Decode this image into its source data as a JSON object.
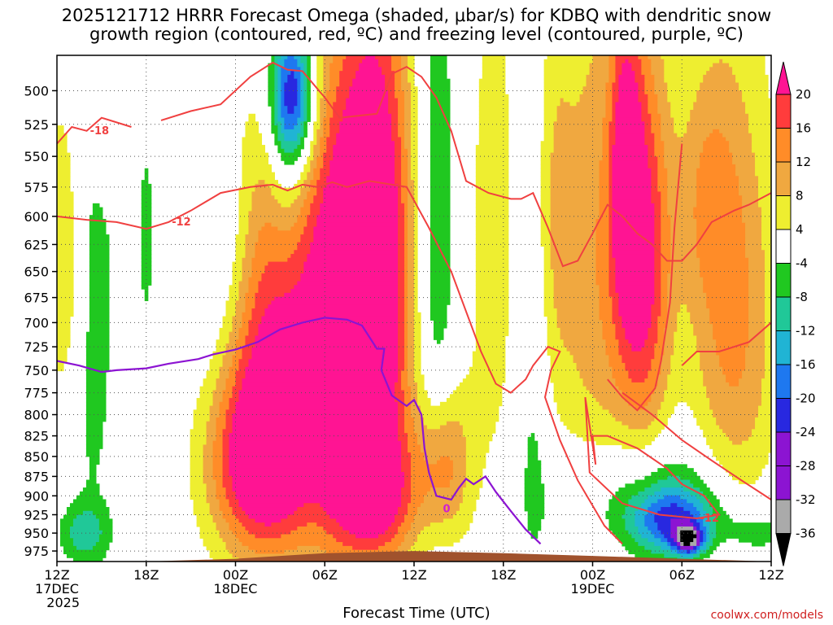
{
  "title": "2025121712 HRRR Forecast Omega (shaded, μbar/s) for KDBQ with dendritic snow\ngrowth region (contoured, red, ºC) and freezing level (contoured, purple, ºC)",
  "xlabel": "Forecast Time (UTC)",
  "credit": "coolwx.com/models",
  "chart_data": {
    "type": "heatmap",
    "title": "2025121712 HRRR Forecast Omega (shaded, μbar/s) for KDBQ with dendritic snow growth region (contoured, red, ºC) and freezing level (contoured, purple, ºC)",
    "xlabel": "Forecast Time (UTC)",
    "ylabel": "",
    "x_ticks": [
      {
        "hour": 0,
        "lines": [
          "12Z",
          "17DEC",
          "2025"
        ]
      },
      {
        "hour": 6,
        "lines": [
          "18Z"
        ]
      },
      {
        "hour": 12,
        "lines": [
          "00Z",
          "18DEC"
        ]
      },
      {
        "hour": 18,
        "lines": [
          "06Z"
        ]
      },
      {
        "hour": 24,
        "lines": [
          "12Z"
        ]
      },
      {
        "hour": 30,
        "lines": [
          "18Z"
        ]
      },
      {
        "hour": 36,
        "lines": [
          "00Z",
          "19DEC"
        ]
      },
      {
        "hour": 42,
        "lines": [
          "06Z"
        ]
      },
      {
        "hour": 48,
        "lines": [
          "12Z"
        ]
      }
    ],
    "xlim_hours": [
      0,
      48
    ],
    "y_ticks": [
      500,
      525,
      550,
      575,
      600,
      625,
      650,
      675,
      700,
      725,
      750,
      775,
      800,
      825,
      850,
      875,
      900,
      925,
      950,
      975
    ],
    "ylim_hpa": [
      475,
      990
    ],
    "y_scale": "log-pressure",
    "grid": true,
    "colorbar": {
      "labels": [
        "20",
        "16",
        "12",
        "8",
        "4",
        "-4",
        "-8",
        "-12",
        "-16",
        "-20",
        "-24",
        "-28",
        "-32",
        "-36"
      ],
      "colors": [
        "#ff1493",
        "#ff3c3c",
        "#ff8c28",
        "#f0a840",
        "#e8c850",
        "#eeee30",
        "#ffffff",
        "#20c820",
        "#20c898",
        "#20b4d4",
        "#1e78f0",
        "#2828e0",
        "#8c14d2",
        "#aaaaaa",
        "#000000"
      ]
    },
    "omega_blobs": [
      {
        "t": 15.6,
        "p": 730,
        "dt": 5.0,
        "dp": 230,
        "v": 24
      },
      {
        "t": 13.5,
        "p": 860,
        "dt": 3.2,
        "dp": 110,
        "v": 18
      },
      {
        "t": 21.5,
        "p": 640,
        "dt": 2.4,
        "dp": 260,
        "v": 26
      },
      {
        "t": 19.0,
        "p": 700,
        "dt": 1.8,
        "dp": 250,
        "v": 10
      },
      {
        "t": 21.5,
        "p": 900,
        "dt": 3.0,
        "dp": 90,
        "v": 16
      },
      {
        "t": 0.8,
        "p": 640,
        "dt": 1.6,
        "dp": 170,
        "v": 10
      },
      {
        "t": 3.0,
        "p": 520,
        "dt": 1.0,
        "dp": 60,
        "v": 6
      },
      {
        "t": 10.5,
        "p": 520,
        "dt": 2.5,
        "dp": 70,
        "v": 6
      },
      {
        "t": 26.0,
        "p": 860,
        "dt": 1.8,
        "dp": 100,
        "v": 14
      },
      {
        "t": 29.5,
        "p": 620,
        "dt": 2.2,
        "dp": 300,
        "v": 6
      },
      {
        "t": 33.0,
        "p": 600,
        "dt": 1.5,
        "dp": 200,
        "v": 8
      },
      {
        "t": 36.5,
        "p": 640,
        "dt": 3.0,
        "dp": 280,
        "v": 11
      },
      {
        "t": 39.5,
        "p": 640,
        "dt": 1.8,
        "dp": 190,
        "v": 19
      },
      {
        "t": 38.2,
        "p": 560,
        "dt": 1.0,
        "dp": 120,
        "v": 14
      },
      {
        "t": 45.5,
        "p": 700,
        "dt": 3.0,
        "dp": 260,
        "v": 13
      },
      {
        "t": 43.5,
        "p": 580,
        "dt": 2.0,
        "dp": 110,
        "v": 7
      },
      {
        "t": 2.2,
        "p": 650,
        "dt": 1.6,
        "dp": 270,
        "v": -9
      },
      {
        "t": 6.0,
        "p": 620,
        "dt": 0.8,
        "dp": 140,
        "v": -5
      },
      {
        "t": 10.8,
        "p": 580,
        "dt": 2.6,
        "dp": 210,
        "v": -11
      },
      {
        "t": 15.5,
        "p": 560,
        "dt": 1.4,
        "dp": 120,
        "v": -7
      },
      {
        "t": 15.8,
        "p": 505,
        "dt": 1.5,
        "dp": 55,
        "v": -26
      },
      {
        "t": 25.5,
        "p": 620,
        "dt": 1.3,
        "dp": 280,
        "v": -9
      },
      {
        "t": 32.0,
        "p": 680,
        "dt": 1.3,
        "dp": 340,
        "v": -8
      },
      {
        "t": 1.8,
        "p": 950,
        "dt": 1.8,
        "dp": 40,
        "v": -9
      },
      {
        "t": 40.0,
        "p": 900,
        "dt": 6.0,
        "dp": 80,
        "v": -9
      },
      {
        "t": 41.5,
        "p": 935,
        "dt": 3.0,
        "dp": 45,
        "v": -18
      },
      {
        "t": 42.5,
        "p": 960,
        "dt": 1.0,
        "dp": 20,
        "v": -22
      },
      {
        "t": 47.0,
        "p": 950,
        "dt": 2.0,
        "dp": 30,
        "v": -8
      }
    ],
    "contours_red": [
      {
        "label": "-18",
        "points": [
          [
            0,
            540
          ],
          [
            1,
            527
          ],
          [
            2,
            530
          ],
          [
            3,
            520
          ],
          [
            5,
            527
          ]
        ]
      },
      {
        "label": "",
        "points": [
          [
            7,
            522
          ],
          [
            9,
            515
          ],
          [
            11,
            510
          ],
          [
            13,
            490
          ],
          [
            14.5,
            480
          ],
          [
            15.5,
            485
          ],
          [
            16.5,
            486
          ],
          [
            18,
            505
          ],
          [
            19,
            520
          ],
          [
            21.5,
            517
          ],
          [
            22.5,
            488
          ],
          [
            23.5,
            483
          ],
          [
            24.5,
            490
          ],
          [
            25.5,
            505
          ],
          [
            26.5,
            530
          ],
          [
            27.5,
            570
          ],
          [
            29,
            580
          ],
          [
            30.5,
            585
          ],
          [
            31.2,
            585
          ],
          [
            32,
            580
          ],
          [
            33,
            610
          ],
          [
            34,
            645
          ],
          [
            35,
            640
          ],
          [
            36,
            615
          ],
          [
            37,
            590
          ],
          [
            38,
            600
          ],
          [
            39,
            615
          ],
          [
            40,
            625
          ],
          [
            41,
            640
          ],
          [
            42,
            640
          ],
          [
            43,
            625
          ],
          [
            44,
            605
          ],
          [
            45.5,
            595
          ],
          [
            46.5,
            590
          ],
          [
            48,
            580
          ]
        ]
      },
      {
        "label": "-12",
        "points": [
          [
            0,
            600
          ],
          [
            2,
            603
          ],
          [
            4,
            605
          ],
          [
            6,
            611
          ],
          [
            7.5,
            605
          ],
          [
            9,
            595
          ],
          [
            11,
            580
          ],
          [
            13,
            575
          ],
          [
            14.5,
            573
          ],
          [
            15.5,
            578
          ],
          [
            16.5,
            573
          ],
          [
            17.5,
            575
          ],
          [
            18.5,
            571
          ],
          [
            19.5,
            575
          ],
          [
            21,
            570
          ],
          [
            23.5,
            575
          ],
          [
            25,
            610
          ],
          [
            26.5,
            650
          ],
          [
            28.5,
            730
          ],
          [
            29.5,
            765
          ],
          [
            30.5,
            775
          ],
          [
            31.5,
            760
          ],
          [
            32,
            745
          ],
          [
            33,
            725
          ],
          [
            33.8,
            730
          ],
          [
            33.2,
            750
          ],
          [
            32.8,
            780
          ],
          [
            33.8,
            830
          ],
          [
            35,
            880
          ],
          [
            36.8,
            940
          ],
          [
            38,
            965
          ]
        ]
      },
      {
        "label": "-12",
        "points": [
          [
            35.5,
            780
          ],
          [
            35.8,
            870
          ],
          [
            38,
            910
          ],
          [
            40.5,
            925
          ],
          [
            43,
            930
          ],
          [
            44.5,
            925
          ],
          [
            43.5,
            900
          ],
          [
            42,
            885
          ],
          [
            41,
            865
          ],
          [
            39,
            840
          ],
          [
            37,
            825
          ],
          [
            36,
            825
          ],
          [
            36.2,
            860
          ],
          [
            35.5,
            780
          ]
        ]
      },
      {
        "label": "",
        "points": [
          [
            42,
            540
          ],
          [
            41.5,
            610
          ],
          [
            41.2,
            680
          ],
          [
            40.6,
            740
          ],
          [
            40.2,
            770
          ],
          [
            39,
            795
          ],
          [
            38,
            780
          ],
          [
            37,
            760
          ]
        ]
      },
      {
        "label": "",
        "points": [
          [
            38,
            775
          ],
          [
            40,
            800
          ],
          [
            42,
            830
          ],
          [
            44,
            855
          ],
          [
            46,
            880
          ],
          [
            48,
            905
          ]
        ]
      },
      {
        "label": "",
        "points": [
          [
            48,
            700
          ],
          [
            46.5,
            720
          ],
          [
            44.5,
            730
          ],
          [
            43,
            730
          ],
          [
            42,
            745
          ]
        ]
      }
    ],
    "contour_freezing": {
      "label": "0",
      "points": [
        [
          0,
          740
        ],
        [
          1.5,
          745
        ],
        [
          3,
          752
        ],
        [
          4,
          750
        ],
        [
          6,
          748
        ],
        [
          7.5,
          743
        ],
        [
          9.5,
          738
        ],
        [
          10.5,
          733
        ],
        [
          12,
          728
        ],
        [
          13.5,
          720
        ],
        [
          15,
          707
        ],
        [
          16.5,
          700
        ],
        [
          18,
          695
        ],
        [
          19.5,
          697
        ],
        [
          20.5,
          703
        ],
        [
          21.5,
          727
        ],
        [
          22,
          727
        ],
        [
          21.8,
          750
        ],
        [
          22.5,
          778
        ],
        [
          23.5,
          790
        ],
        [
          24,
          783
        ],
        [
          24.5,
          800
        ],
        [
          24.7,
          840
        ],
        [
          25,
          870
        ],
        [
          25.5,
          900
        ],
        [
          26.5,
          905
        ],
        [
          27,
          890
        ],
        [
          27.5,
          878
        ],
        [
          28,
          885
        ],
        [
          28.8,
          875
        ],
        [
          29.5,
          895
        ],
        [
          30.5,
          920
        ],
        [
          31.5,
          945
        ],
        [
          32.5,
          965
        ]
      ]
    },
    "terrain": {
      "color": "#a0522d",
      "surface": [
        [
          0,
          990
        ],
        [
          6,
          990
        ],
        [
          12,
          986
        ],
        [
          18,
          978
        ],
        [
          24,
          975
        ],
        [
          30,
          978
        ],
        [
          36,
          982
        ],
        [
          42,
          986
        ],
        [
          48,
          990
        ]
      ]
    }
  }
}
